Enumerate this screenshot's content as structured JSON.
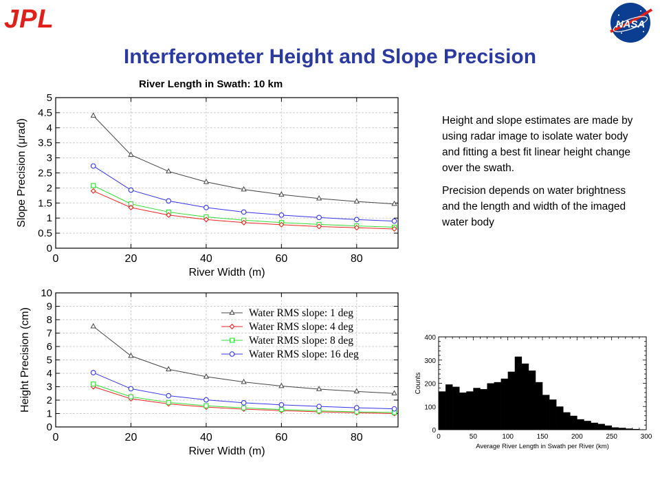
{
  "slide": {
    "title": "Interferometer Height and Slope Precision",
    "jpl_logo_text": "JPL",
    "nasa_logo_text": "NASA",
    "description": [
      "Height and slope estimates are made by using radar image to isolate water body and fitting a best fit linear height change over the swath.",
      "Precision depends on water brightness and the length and width of the imaged water body"
    ]
  },
  "colors": {
    "title": "#2b3a9e",
    "jpl": "#e0201b",
    "nasa": "#0b3d91"
  },
  "chart_data": [
    {
      "id": "slope",
      "type": "line",
      "title": "River Length in Swath: 10 km",
      "xlabel": "River Width (m)",
      "ylabel": "Slope Precision (μrad)",
      "xlim": [
        0,
        91
      ],
      "ylim": [
        0,
        5
      ],
      "xticks": [
        0,
        20,
        40,
        60,
        80
      ],
      "yticks": [
        0,
        0.5,
        1,
        1.5,
        2,
        2.5,
        3,
        3.5,
        4,
        4.5,
        5
      ],
      "ytick_labels": [
        "0",
        "0.5",
        "1",
        "1.5",
        "2",
        "2.5",
        "3",
        "3.5",
        "4",
        "4.5",
        "5"
      ],
      "grid": true,
      "x": [
        10,
        20,
        30,
        40,
        50,
        60,
        70,
        80,
        90
      ],
      "series": [
        {
          "color": "#444444",
          "marker": "triangle",
          "values": [
            4.4,
            3.1,
            2.55,
            2.2,
            1.95,
            1.78,
            1.65,
            1.55,
            1.47
          ]
        },
        {
          "color": "#3333ee",
          "marker": "circle",
          "values": [
            2.73,
            1.93,
            1.57,
            1.35,
            1.2,
            1.1,
            1.02,
            0.95,
            0.9
          ]
        },
        {
          "color": "#33dd33",
          "marker": "square",
          "values": [
            2.08,
            1.47,
            1.2,
            1.04,
            0.93,
            0.85,
            0.79,
            0.74,
            0.7
          ]
        },
        {
          "color": "#ee2222",
          "marker": "diamond",
          "values": [
            1.9,
            1.35,
            1.1,
            0.95,
            0.85,
            0.78,
            0.72,
            0.68,
            0.64
          ]
        }
      ]
    },
    {
      "id": "height",
      "type": "line",
      "xlabel": "River Width (m)",
      "ylabel": "Height Precision (cm)",
      "xlim": [
        0,
        91
      ],
      "ylim": [
        0,
        10
      ],
      "xticks": [
        0,
        20,
        40,
        60,
        80
      ],
      "yticks": [
        0,
        1,
        2,
        3,
        4,
        5,
        6,
        7,
        8,
        9,
        10
      ],
      "ytick_labels": [
        "0",
        "1",
        "2",
        "3",
        "4",
        "5",
        "6",
        "7",
        "8",
        "9",
        "10"
      ],
      "grid": true,
      "legend_position": "top-right",
      "x": [
        10,
        20,
        30,
        40,
        50,
        60,
        70,
        80,
        90
      ],
      "series": [
        {
          "name": "Water RMS slope: 1 deg",
          "color": "#444444",
          "marker": "triangle",
          "values": [
            7.5,
            5.3,
            4.3,
            3.75,
            3.35,
            3.05,
            2.82,
            2.65,
            2.5
          ]
        },
        {
          "name": "Water RMS slope: 4 deg",
          "color": "#ee2222",
          "marker": "diamond",
          "values": [
            3.0,
            2.1,
            1.72,
            1.48,
            1.33,
            1.22,
            1.13,
            1.06,
            1.0
          ]
        },
        {
          "name": "Water RMS slope: 8 deg",
          "color": "#33dd33",
          "marker": "square",
          "values": [
            3.2,
            2.25,
            1.83,
            1.58,
            1.42,
            1.3,
            1.2,
            1.13,
            1.07
          ]
        },
        {
          "name": "Water RMS slope: 16 deg",
          "color": "#3333ee",
          "marker": "circle",
          "values": [
            4.05,
            2.85,
            2.33,
            2.02,
            1.8,
            1.65,
            1.53,
            1.43,
            1.35
          ]
        }
      ]
    },
    {
      "id": "hist",
      "type": "bar",
      "xlabel": "Average River Length in Swath per River (km)",
      "ylabel": "Counts",
      "xlim": [
        0,
        300
      ],
      "ylim": [
        0,
        400
      ],
      "xticks": [
        0,
        50,
        100,
        150,
        200,
        250,
        300
      ],
      "yticks": [
        0,
        100,
        200,
        300,
        400
      ],
      "bin_width": 10,
      "bin_starts": [
        0,
        10,
        20,
        30,
        40,
        50,
        60,
        70,
        80,
        90,
        100,
        110,
        120,
        130,
        140,
        150,
        160,
        170,
        180,
        190,
        200,
        210,
        220,
        230,
        240,
        250,
        260,
        270,
        280
      ],
      "values": [
        165,
        195,
        185,
        160,
        165,
        180,
        175,
        200,
        205,
        220,
        250,
        315,
        285,
        255,
        205,
        150,
        130,
        100,
        75,
        60,
        45,
        38,
        30,
        25,
        18,
        10,
        8,
        5,
        3
      ],
      "color": "#000000"
    }
  ]
}
